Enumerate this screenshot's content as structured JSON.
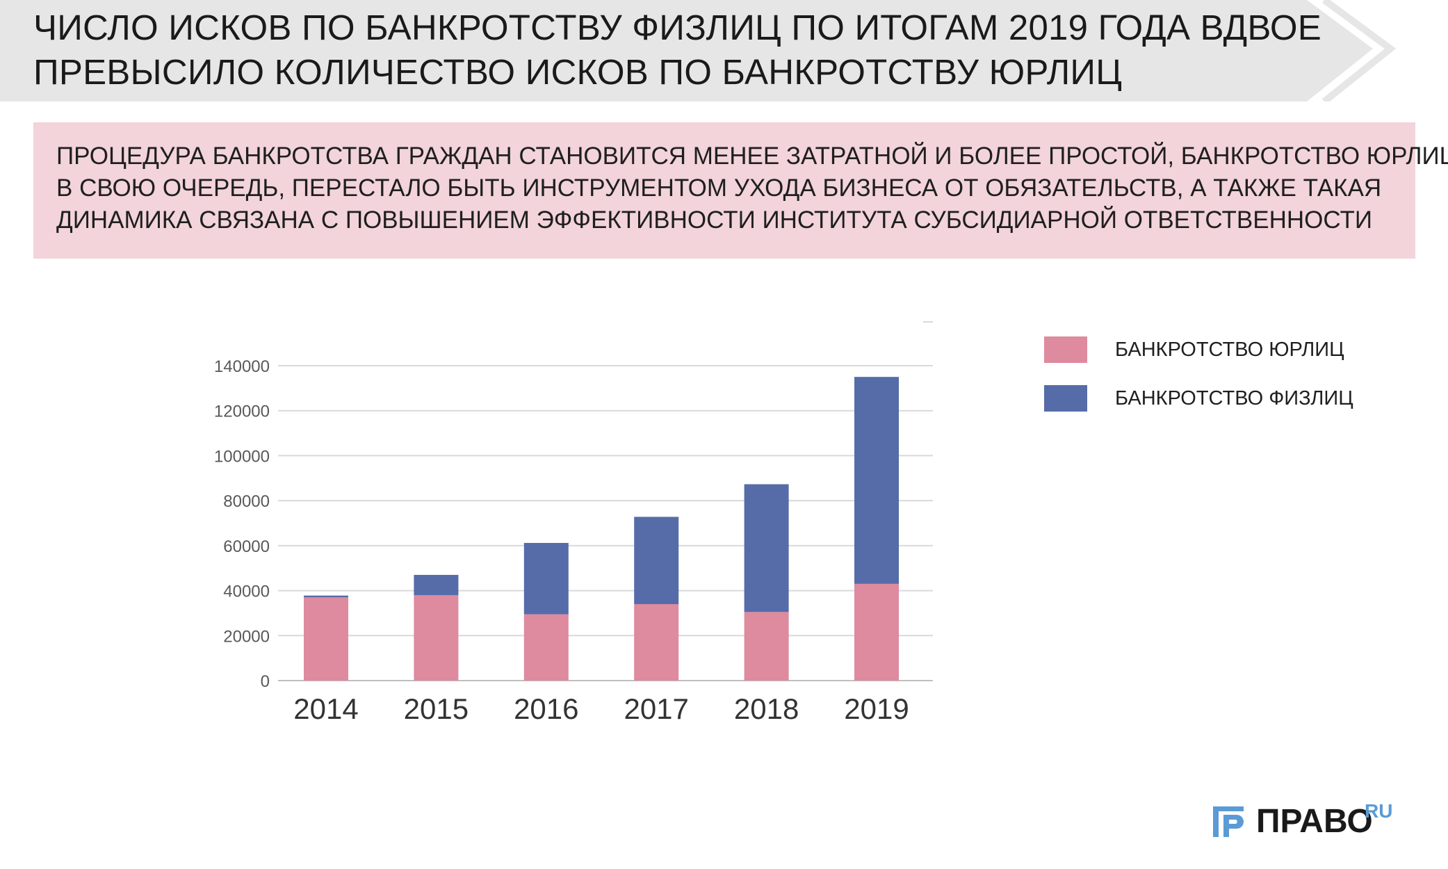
{
  "header": {
    "title_lines": [
      "ЧИСЛО ИСКОВ ПО БАНКРОТСТВУ ФИЗЛИЦ ПО ИТОГАМ 2019 ГОДА ВДВОЕ",
      "ПРЕВЫСИЛО КОЛИЧЕСТВО ИСКОВ ПО БАНКРОТСТВУ ЮРЛИЦ"
    ]
  },
  "callout": {
    "lines": [
      "ПРОЦЕДУРА БАНКРОТСТВА ГРАЖДАН СТАНОВИТСЯ МЕНЕЕ ЗАТРАТНОЙ И БОЛЕЕ ПРОСТОЙ, БАНКРОТСТВО ЮРЛИЦ,",
      "В СВОЮ ОЧЕРЕДЬ, ПЕРЕСТАЛО БЫТЬ ИНСТРУМЕНТОМ УХОДА БИЗНЕСА ОТ ОБЯЗАТЕЛЬСТВ, А ТАКЖЕ ТАКАЯ",
      "ДИНАМИКА СВЯЗАНА С ПОВЫШЕНИЕМ ЭФФЕКТИВНОСТИ  ИНСТИТУТА СУБСИДИАРНОЙ ОТВЕТСТВЕННОСТИ"
    ]
  },
  "chart_data": {
    "type": "bar",
    "stacked": true,
    "categories": [
      "2014",
      "2015",
      "2016",
      "2017",
      "2018",
      "2019"
    ],
    "series": [
      {
        "name": "БАНКРОТСТВО ЮРЛИЦ",
        "color": "#de8a9f",
        "values": [
          37000,
          38000,
          29500,
          34000,
          30500,
          43000
        ]
      },
      {
        "name": "БАНКРОТСТВО ФИЗЛИЦ",
        "color": "#556ca8",
        "values": [
          800,
          9000,
          31700,
          38800,
          56800,
          92000
        ]
      }
    ],
    "ylim": [
      0,
      140000
    ],
    "yticks": [
      "0",
      "20000",
      "40000",
      "60000",
      "80000",
      "100000",
      "120000",
      "140000"
    ],
    "grid": true,
    "legend_position": "right"
  },
  "logo": {
    "text": "ПРАВО",
    "superscript": "RU"
  },
  "colors": {
    "header_bg": "#e6e6e6",
    "callout_bg": "#f2d4da",
    "grid": "#d9d9d9",
    "logo_accent": "#5b9bd5"
  }
}
